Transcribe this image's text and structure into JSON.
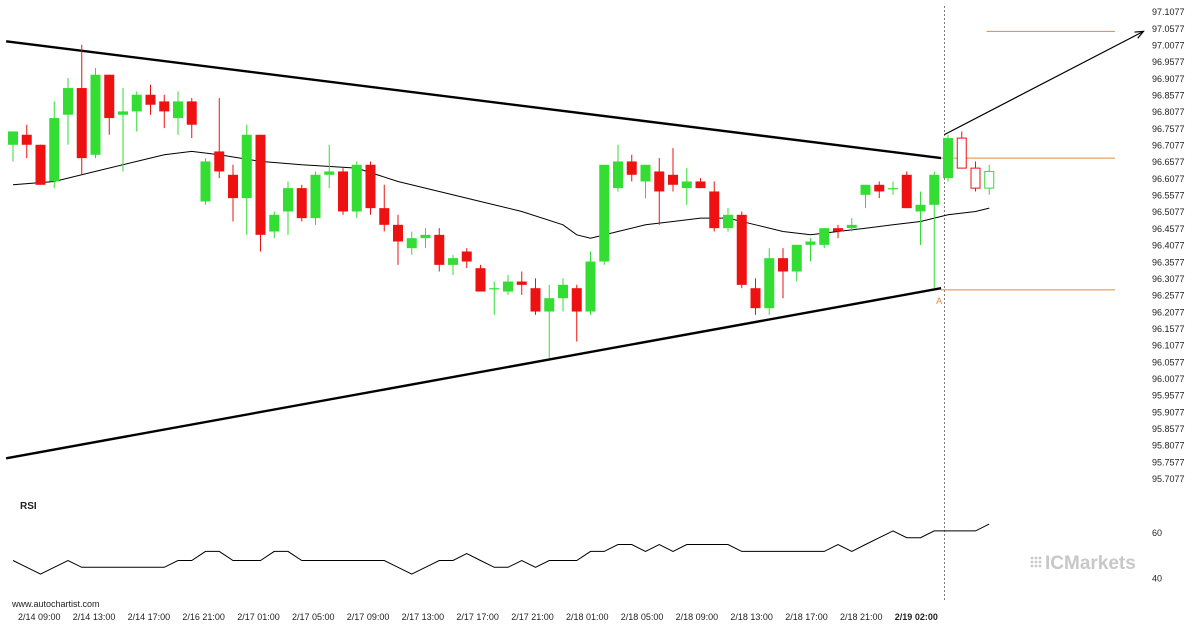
{
  "chart_data": {
    "type": "candlestick",
    "indicator_label": "RSI",
    "source": "www.autochartist.com",
    "brand": "ICMarkets",
    "point_label": "A",
    "colors": {
      "up": "#33dd33",
      "down": "#ee1111",
      "pattern_line": "#000000",
      "level_line": "#e08a3c",
      "moving_average": "#000000",
      "rsi_line": "#000000"
    },
    "y_ticks": [
      "97.1077",
      "97.0577",
      "97.0077",
      "96.9577",
      "96.9077",
      "96.8577",
      "96.8077",
      "96.7577",
      "96.7077",
      "96.6577",
      "96.6077",
      "96.5577",
      "96.5077",
      "96.4577",
      "96.4077",
      "96.3577",
      "96.3077",
      "96.2577",
      "96.2077",
      "96.1577",
      "96.1077",
      "96.0577",
      "96.0077",
      "95.9577",
      "95.9077",
      "95.8577",
      "95.8077",
      "95.7577",
      "95.7077"
    ],
    "ylim": [
      95.69,
      97.12
    ],
    "x_ticks": [
      "2/14 09:00",
      "2/14 13:00",
      "2/14 17:00",
      "2/16 21:00",
      "2/17 01:00",
      "2/17 05:00",
      "2/17 09:00",
      "2/17 13:00",
      "2/17 17:00",
      "2/17 21:00",
      "2/18 01:00",
      "2/18 05:00",
      "2/18 09:00",
      "2/18 13:00",
      "2/18 17:00",
      "2/18 21:00",
      "2/19 02:00"
    ],
    "highlight_x_tick": "2/19 02:00",
    "rsi_ticks": [
      "60",
      "40"
    ],
    "rsi_lim": [
      35,
      68
    ],
    "candles": [
      [
        96.71,
        96.75,
        96.66,
        96.75
      ],
      [
        96.74,
        96.77,
        96.67,
        96.71
      ],
      [
        96.71,
        96.71,
        96.59,
        96.59
      ],
      [
        96.6,
        96.84,
        96.58,
        96.79
      ],
      [
        96.8,
        96.91,
        96.71,
        96.88
      ],
      [
        96.88,
        97.01,
        96.62,
        96.67
      ],
      [
        96.68,
        96.94,
        96.67,
        96.92
      ],
      [
        96.92,
        96.92,
        96.74,
        96.79
      ],
      [
        96.8,
        96.88,
        96.63,
        96.81
      ],
      [
        96.81,
        96.87,
        96.75,
        96.86
      ],
      [
        96.86,
        96.89,
        96.8,
        96.83
      ],
      [
        96.84,
        96.86,
        96.76,
        96.81
      ],
      [
        96.79,
        96.87,
        96.74,
        96.84
      ],
      [
        96.84,
        96.85,
        96.73,
        96.77
      ],
      [
        96.54,
        96.67,
        96.53,
        96.66
      ],
      [
        96.69,
        96.85,
        96.61,
        96.63
      ],
      [
        96.62,
        96.65,
        96.48,
        96.55
      ],
      [
        96.55,
        96.77,
        96.44,
        96.74
      ],
      [
        96.74,
        96.74,
        96.39,
        96.44
      ],
      [
        96.45,
        96.51,
        96.43,
        96.5
      ],
      [
        96.51,
        96.6,
        96.44,
        96.58
      ],
      [
        96.58,
        96.59,
        96.48,
        96.49
      ],
      [
        96.49,
        96.63,
        96.47,
        96.62
      ],
      [
        96.62,
        96.71,
        96.58,
        96.63
      ],
      [
        96.63,
        96.64,
        96.5,
        96.51
      ],
      [
        96.51,
        96.66,
        96.49,
        96.65
      ],
      [
        96.65,
        96.66,
        96.5,
        96.52
      ],
      [
        96.52,
        96.59,
        96.45,
        96.47
      ],
      [
        96.47,
        96.5,
        96.35,
        96.42
      ],
      [
        96.4,
        96.45,
        96.38,
        96.43
      ],
      [
        96.43,
        96.46,
        96.4,
        96.44
      ],
      [
        96.44,
        96.46,
        96.33,
        96.35
      ],
      [
        96.35,
        96.38,
        96.32,
        96.37
      ],
      [
        96.39,
        96.4,
        96.34,
        96.36
      ],
      [
        96.34,
        96.35,
        96.27,
        96.27
      ],
      [
        96.28,
        96.3,
        96.2,
        96.28
      ],
      [
        96.27,
        96.32,
        96.26,
        96.3
      ],
      [
        96.3,
        96.33,
        96.26,
        96.29
      ],
      [
        96.28,
        96.31,
        96.2,
        96.21
      ],
      [
        96.21,
        96.29,
        96.07,
        96.25
      ],
      [
        96.25,
        96.31,
        96.21,
        96.29
      ],
      [
        96.28,
        96.29,
        96.12,
        96.21
      ],
      [
        96.21,
        96.39,
        96.2,
        96.36
      ],
      [
        96.36,
        96.64,
        96.35,
        96.65
      ],
      [
        96.58,
        96.71,
        96.57,
        96.66
      ],
      [
        96.66,
        96.68,
        96.6,
        96.62
      ],
      [
        96.6,
        96.65,
        96.55,
        96.65
      ],
      [
        96.63,
        96.67,
        96.47,
        96.57
      ],
      [
        96.62,
        96.7,
        96.57,
        96.59
      ],
      [
        96.58,
        96.64,
        96.53,
        96.6
      ],
      [
        96.6,
        96.61,
        96.58,
        96.58
      ],
      [
        96.57,
        96.6,
        96.45,
        96.46
      ],
      [
        96.46,
        96.52,
        96.45,
        96.5
      ],
      [
        96.5,
        96.51,
        96.28,
        96.29
      ],
      [
        96.28,
        96.31,
        96.2,
        96.22
      ],
      [
        96.22,
        96.4,
        96.2,
        96.37
      ],
      [
        96.37,
        96.4,
        96.25,
        96.33
      ],
      [
        96.33,
        96.41,
        96.3,
        96.41
      ],
      [
        96.41,
        96.43,
        96.36,
        96.42
      ],
      [
        96.41,
        96.46,
        96.4,
        96.46
      ],
      [
        96.46,
        96.47,
        96.43,
        96.45
      ],
      [
        96.46,
        96.49,
        96.45,
        96.47
      ],
      [
        96.56,
        96.59,
        96.52,
        96.59
      ],
      [
        96.59,
        96.6,
        96.55,
        96.57
      ],
      [
        96.58,
        96.6,
        96.56,
        96.58
      ],
      [
        96.62,
        96.63,
        96.52,
        96.52
      ],
      [
        96.51,
        96.57,
        96.41,
        96.53
      ],
      [
        96.53,
        96.63,
        96.28,
        96.62
      ],
      [
        96.61,
        96.74,
        96.6,
        96.73
      ],
      [
        96.73,
        96.75,
        96.64,
        96.64
      ],
      [
        96.64,
        96.66,
        96.57,
        96.58
      ],
      [
        96.58,
        96.65,
        96.56,
        96.63
      ]
    ],
    "moving_average": [
      [
        0,
        96.59
      ],
      [
        3,
        96.6
      ],
      [
        6,
        96.63
      ],
      [
        9,
        96.66
      ],
      [
        11,
        96.68
      ],
      [
        13,
        96.69
      ],
      [
        15,
        96.68
      ],
      [
        18,
        96.66
      ],
      [
        21,
        96.65
      ],
      [
        25,
        96.64
      ],
      [
        28,
        96.6
      ],
      [
        31,
        96.57
      ],
      [
        34,
        96.54
      ],
      [
        37,
        96.51
      ],
      [
        40,
        96.47
      ],
      [
        41,
        96.44
      ],
      [
        42,
        96.43
      ],
      [
        44,
        96.45
      ],
      [
        46,
        96.47
      ],
      [
        48,
        96.48
      ],
      [
        50,
        96.49
      ],
      [
        52,
        96.49
      ],
      [
        54,
        96.47
      ],
      [
        56,
        96.45
      ],
      [
        58,
        96.44
      ],
      [
        60,
        96.45
      ],
      [
        62,
        96.46
      ],
      [
        64,
        96.47
      ],
      [
        66,
        96.48
      ],
      [
        68,
        96.5
      ],
      [
        70,
        96.51
      ],
      [
        71,
        96.52
      ]
    ],
    "rsi": [
      [
        0,
        48
      ],
      [
        1,
        45
      ],
      [
        2,
        42
      ],
      [
        3,
        45
      ],
      [
        4,
        48
      ],
      [
        5,
        45
      ],
      [
        6,
        45
      ],
      [
        7,
        45
      ],
      [
        8,
        45
      ],
      [
        9,
        45
      ],
      [
        10,
        45
      ],
      [
        11,
        45
      ],
      [
        12,
        48
      ],
      [
        13,
        48
      ],
      [
        14,
        52
      ],
      [
        15,
        52
      ],
      [
        16,
        48
      ],
      [
        17,
        48
      ],
      [
        18,
        48
      ],
      [
        19,
        52
      ],
      [
        20,
        52
      ],
      [
        21,
        48
      ],
      [
        22,
        48
      ],
      [
        23,
        48
      ],
      [
        24,
        48
      ],
      [
        25,
        48
      ],
      [
        26,
        48
      ],
      [
        27,
        48
      ],
      [
        28,
        45
      ],
      [
        29,
        42
      ],
      [
        30,
        45
      ],
      [
        31,
        48
      ],
      [
        32,
        48
      ],
      [
        33,
        51
      ],
      [
        34,
        48
      ],
      [
        35,
        45
      ],
      [
        36,
        45
      ],
      [
        37,
        48
      ],
      [
        38,
        45
      ],
      [
        39,
        48
      ],
      [
        40,
        48
      ],
      [
        41,
        48
      ],
      [
        42,
        52
      ],
      [
        43,
        52
      ],
      [
        44,
        55
      ],
      [
        45,
        55
      ],
      [
        46,
        52
      ],
      [
        47,
        55
      ],
      [
        48,
        52
      ],
      [
        49,
        55
      ],
      [
        50,
        55
      ],
      [
        51,
        55
      ],
      [
        52,
        55
      ],
      [
        53,
        52
      ],
      [
        54,
        52
      ],
      [
        55,
        52
      ],
      [
        56,
        52
      ],
      [
        57,
        52
      ],
      [
        58,
        52
      ],
      [
        59,
        52
      ],
      [
        60,
        55
      ],
      [
        61,
        52
      ],
      [
        62,
        55
      ],
      [
        63,
        58
      ],
      [
        64,
        61
      ],
      [
        65,
        58
      ],
      [
        66,
        58
      ],
      [
        67,
        61
      ],
      [
        68,
        61
      ],
      [
        69,
        61
      ],
      [
        70,
        61
      ],
      [
        71,
        64
      ]
    ],
    "triangle_upper": [
      [
        -0.5,
        97.02
      ],
      [
        67.5,
        96.67
      ]
    ],
    "triangle_lower": [
      [
        -0.5,
        95.77
      ],
      [
        67.5,
        96.28
      ]
    ],
    "projection_arrow": [
      [
        67.5,
        96.74
      ],
      [
        82,
        97.05
      ]
    ],
    "levels": [
      {
        "name": "target",
        "y": 97.05,
        "x_start": 70.8
      },
      {
        "name": "breakout",
        "y": 96.67,
        "x_start": 67.5
      },
      {
        "name": "point-a",
        "y": 96.275,
        "x_start": 67.5
      }
    ],
    "point_a": [
      67.5,
      96.275
    ],
    "breakout_index": 67.5
  }
}
